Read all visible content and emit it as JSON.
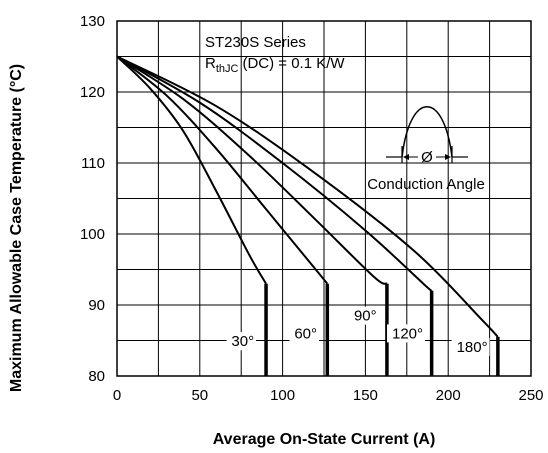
{
  "chart_data": {
    "type": "line",
    "title": "",
    "xlabel": "Average On-State Current (A)",
    "ylabel": "Maximum Allowable Case Temperature (°C)",
    "xlim": [
      0,
      250
    ],
    "ylim": [
      80,
      130
    ],
    "x_ticks": [
      0,
      50,
      100,
      150,
      200,
      250
    ],
    "y_ticks": [
      80,
      90,
      100,
      110,
      120,
      130
    ],
    "x_tick_labels": [
      "0",
      "50",
      "100",
      "150",
      "200",
      "250"
    ],
    "y_tick_labels": [
      "80",
      "90",
      "100",
      "110",
      "120",
      "130"
    ],
    "grid": true,
    "legend": "none",
    "annotations": {
      "series_title": "ST230S Series",
      "rth_main": "R",
      "rth_sub": "thJC",
      "rth_rest": "(DC) = 0.1 K/W",
      "conduction_angle": "Conduction Angle",
      "phi_symbol": "Ø"
    },
    "series": [
      {
        "label": "30°",
        "points": [
          [
            0,
            125
          ],
          [
            20,
            120.5
          ],
          [
            40,
            114.5
          ],
          [
            60,
            106
          ],
          [
            80,
            97
          ],
          [
            90,
            93
          ],
          [
            90,
            80
          ]
        ]
      },
      {
        "label": "60°",
        "points": [
          [
            0,
            125
          ],
          [
            30,
            119.5
          ],
          [
            60,
            112
          ],
          [
            90,
            103.5
          ],
          [
            120,
            95
          ],
          [
            127,
            93
          ],
          [
            127,
            80
          ]
        ]
      },
      {
        "label": "90°",
        "points": [
          [
            0,
            125
          ],
          [
            40,
            119
          ],
          [
            80,
            111
          ],
          [
            120,
            102
          ],
          [
            155,
            94
          ],
          [
            163,
            93
          ],
          [
            163,
            80
          ]
        ]
      },
      {
        "label": "120°",
        "points": [
          [
            0,
            125
          ],
          [
            50,
            118.5
          ],
          [
            100,
            110
          ],
          [
            150,
            100.5
          ],
          [
            185,
            93
          ],
          [
            190,
            92
          ],
          [
            190,
            80
          ]
        ]
      },
      {
        "label": "180°",
        "points": [
          [
            0,
            125
          ],
          [
            60,
            118
          ],
          [
            120,
            108.5
          ],
          [
            180,
            97.5
          ],
          [
            220,
            88
          ],
          [
            230,
            85.5
          ],
          [
            230,
            80
          ]
        ]
      }
    ]
  }
}
